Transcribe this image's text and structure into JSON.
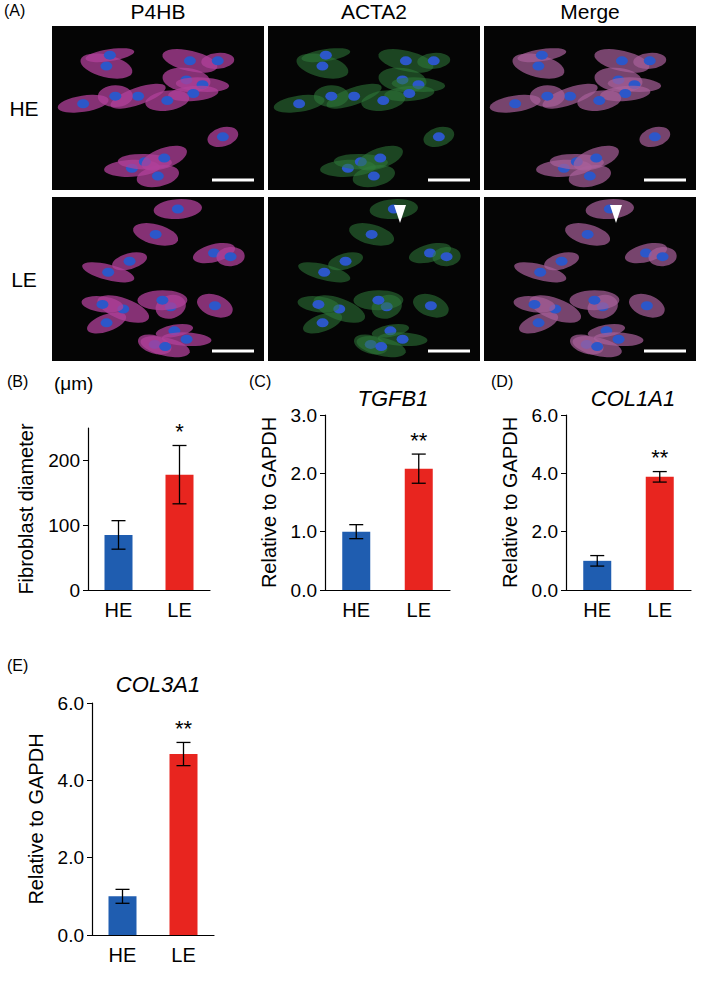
{
  "panel_a": {
    "label": "(A)",
    "columns": [
      "P4HB",
      "ACTA2",
      "Merge"
    ],
    "rows": [
      "HE",
      "LE"
    ]
  },
  "chart_data": [
    {
      "type": "bar",
      "panel": "(B)",
      "ylabel": "Fibroblast diameter",
      "yunit": "(μm)",
      "categories": [
        "HE",
        "LE"
      ],
      "values": [
        85,
        178
      ],
      "errors": [
        22,
        45
      ],
      "colors": [
        "#1f5db0",
        "#e8251f"
      ],
      "ylim": [
        0,
        250
      ],
      "yticks": [
        0,
        100,
        200
      ],
      "annotations": [
        {
          "x": "LE",
          "text": "*"
        }
      ],
      "grid": false
    },
    {
      "type": "bar",
      "panel": "(C)",
      "title": "TGFB1",
      "ylabel": "Relative to GAPDH",
      "categories": [
        "HE",
        "LE"
      ],
      "values": [
        1.0,
        2.08
      ],
      "errors": [
        0.12,
        0.25
      ],
      "colors": [
        "#1f5db0",
        "#e8251f"
      ],
      "ylim": [
        0,
        3
      ],
      "yticks": [
        {
          "value": 0,
          "label": "0.0"
        },
        {
          "value": 1,
          "label": "1.0"
        },
        {
          "value": 2,
          "label": "2.0"
        },
        {
          "value": 3,
          "label": "3.0"
        }
      ],
      "annotations": [
        {
          "x": "LE",
          "text": "**"
        }
      ],
      "grid": false
    },
    {
      "type": "bar",
      "panel": "(D)",
      "title": "COL1A1",
      "ylabel": "Relative to GAPDH",
      "categories": [
        "HE",
        "LE"
      ],
      "values": [
        1.0,
        3.88
      ],
      "errors": [
        0.18,
        0.18
      ],
      "colors": [
        "#1f5db0",
        "#e8251f"
      ],
      "ylim": [
        0,
        6
      ],
      "yticks": [
        {
          "value": 0,
          "label": "0.0"
        },
        {
          "value": 2,
          "label": "2.0"
        },
        {
          "value": 4,
          "label": "4.0"
        },
        {
          "value": 6,
          "label": "6.0"
        }
      ],
      "annotations": [
        {
          "x": "LE",
          "text": "**"
        }
      ],
      "grid": false
    },
    {
      "type": "bar",
      "panel": "(E)",
      "title": "COL3A1",
      "ylabel": "Relative to GAPDH",
      "categories": [
        "HE",
        "LE"
      ],
      "values": [
        1.0,
        4.68
      ],
      "errors": [
        0.18,
        0.3
      ],
      "colors": [
        "#1f5db0",
        "#e8251f"
      ],
      "ylim": [
        0,
        6
      ],
      "yticks": [
        {
          "value": 0,
          "label": "0.0"
        },
        {
          "value": 2,
          "label": "2.0"
        },
        {
          "value": 4,
          "label": "4.0"
        },
        {
          "value": 6,
          "label": "6.0"
        }
      ],
      "annotations": [
        {
          "x": "LE",
          "text": "**"
        }
      ],
      "grid": false
    }
  ]
}
